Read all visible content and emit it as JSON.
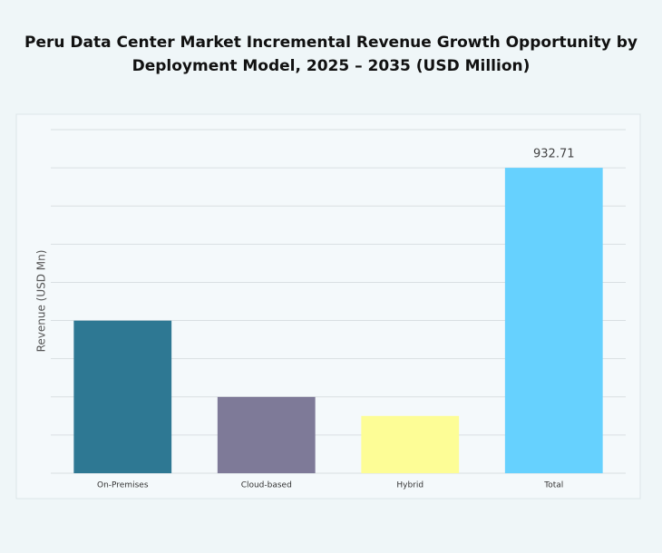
{
  "chart_data": {
    "type": "bar",
    "title_lines": [
      "Peru Data Center Market Incremental Revenue Growth Opportunity by",
      "Deployment Model, 2025 – 2035 (USD Million)"
    ],
    "y_label": "Revenue (USD Mn)",
    "categories": [
      "On-Premises",
      "Cloud-based",
      "Hybrid",
      "Total"
    ],
    "values": [
      466,
      233,
      175,
      932.71
    ],
    "value_labels": [
      null,
      null,
      null,
      "932.71"
    ],
    "colors": [
      "#2e7893",
      "#7e7a98",
      "#fdfd96",
      "#66d1fe"
    ],
    "ylim": [
      0,
      1049.31
    ],
    "yticks": [
      0,
      116.59,
      233.18,
      349.77,
      466.36,
      582.95,
      699.54,
      816.13,
      932.72,
      1049.31
    ],
    "grid": true
  }
}
